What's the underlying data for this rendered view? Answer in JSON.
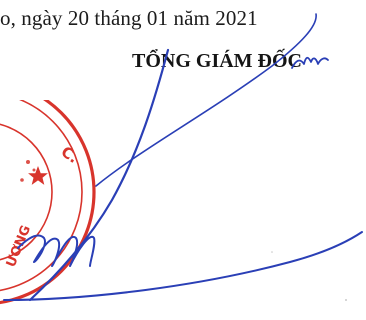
{
  "document": {
    "date_line": "o, ngày 20 tháng 01 năm 2021",
    "signatory_title": "TỔNG GIÁM ĐỐC"
  },
  "seal": {
    "partial_text": "C.",
    "partial_text_lower": "ƯƠNG",
    "color": "#d8342c"
  },
  "colors": {
    "ink_blue": "#2a3fb6",
    "text": "#1a1a1a"
  }
}
